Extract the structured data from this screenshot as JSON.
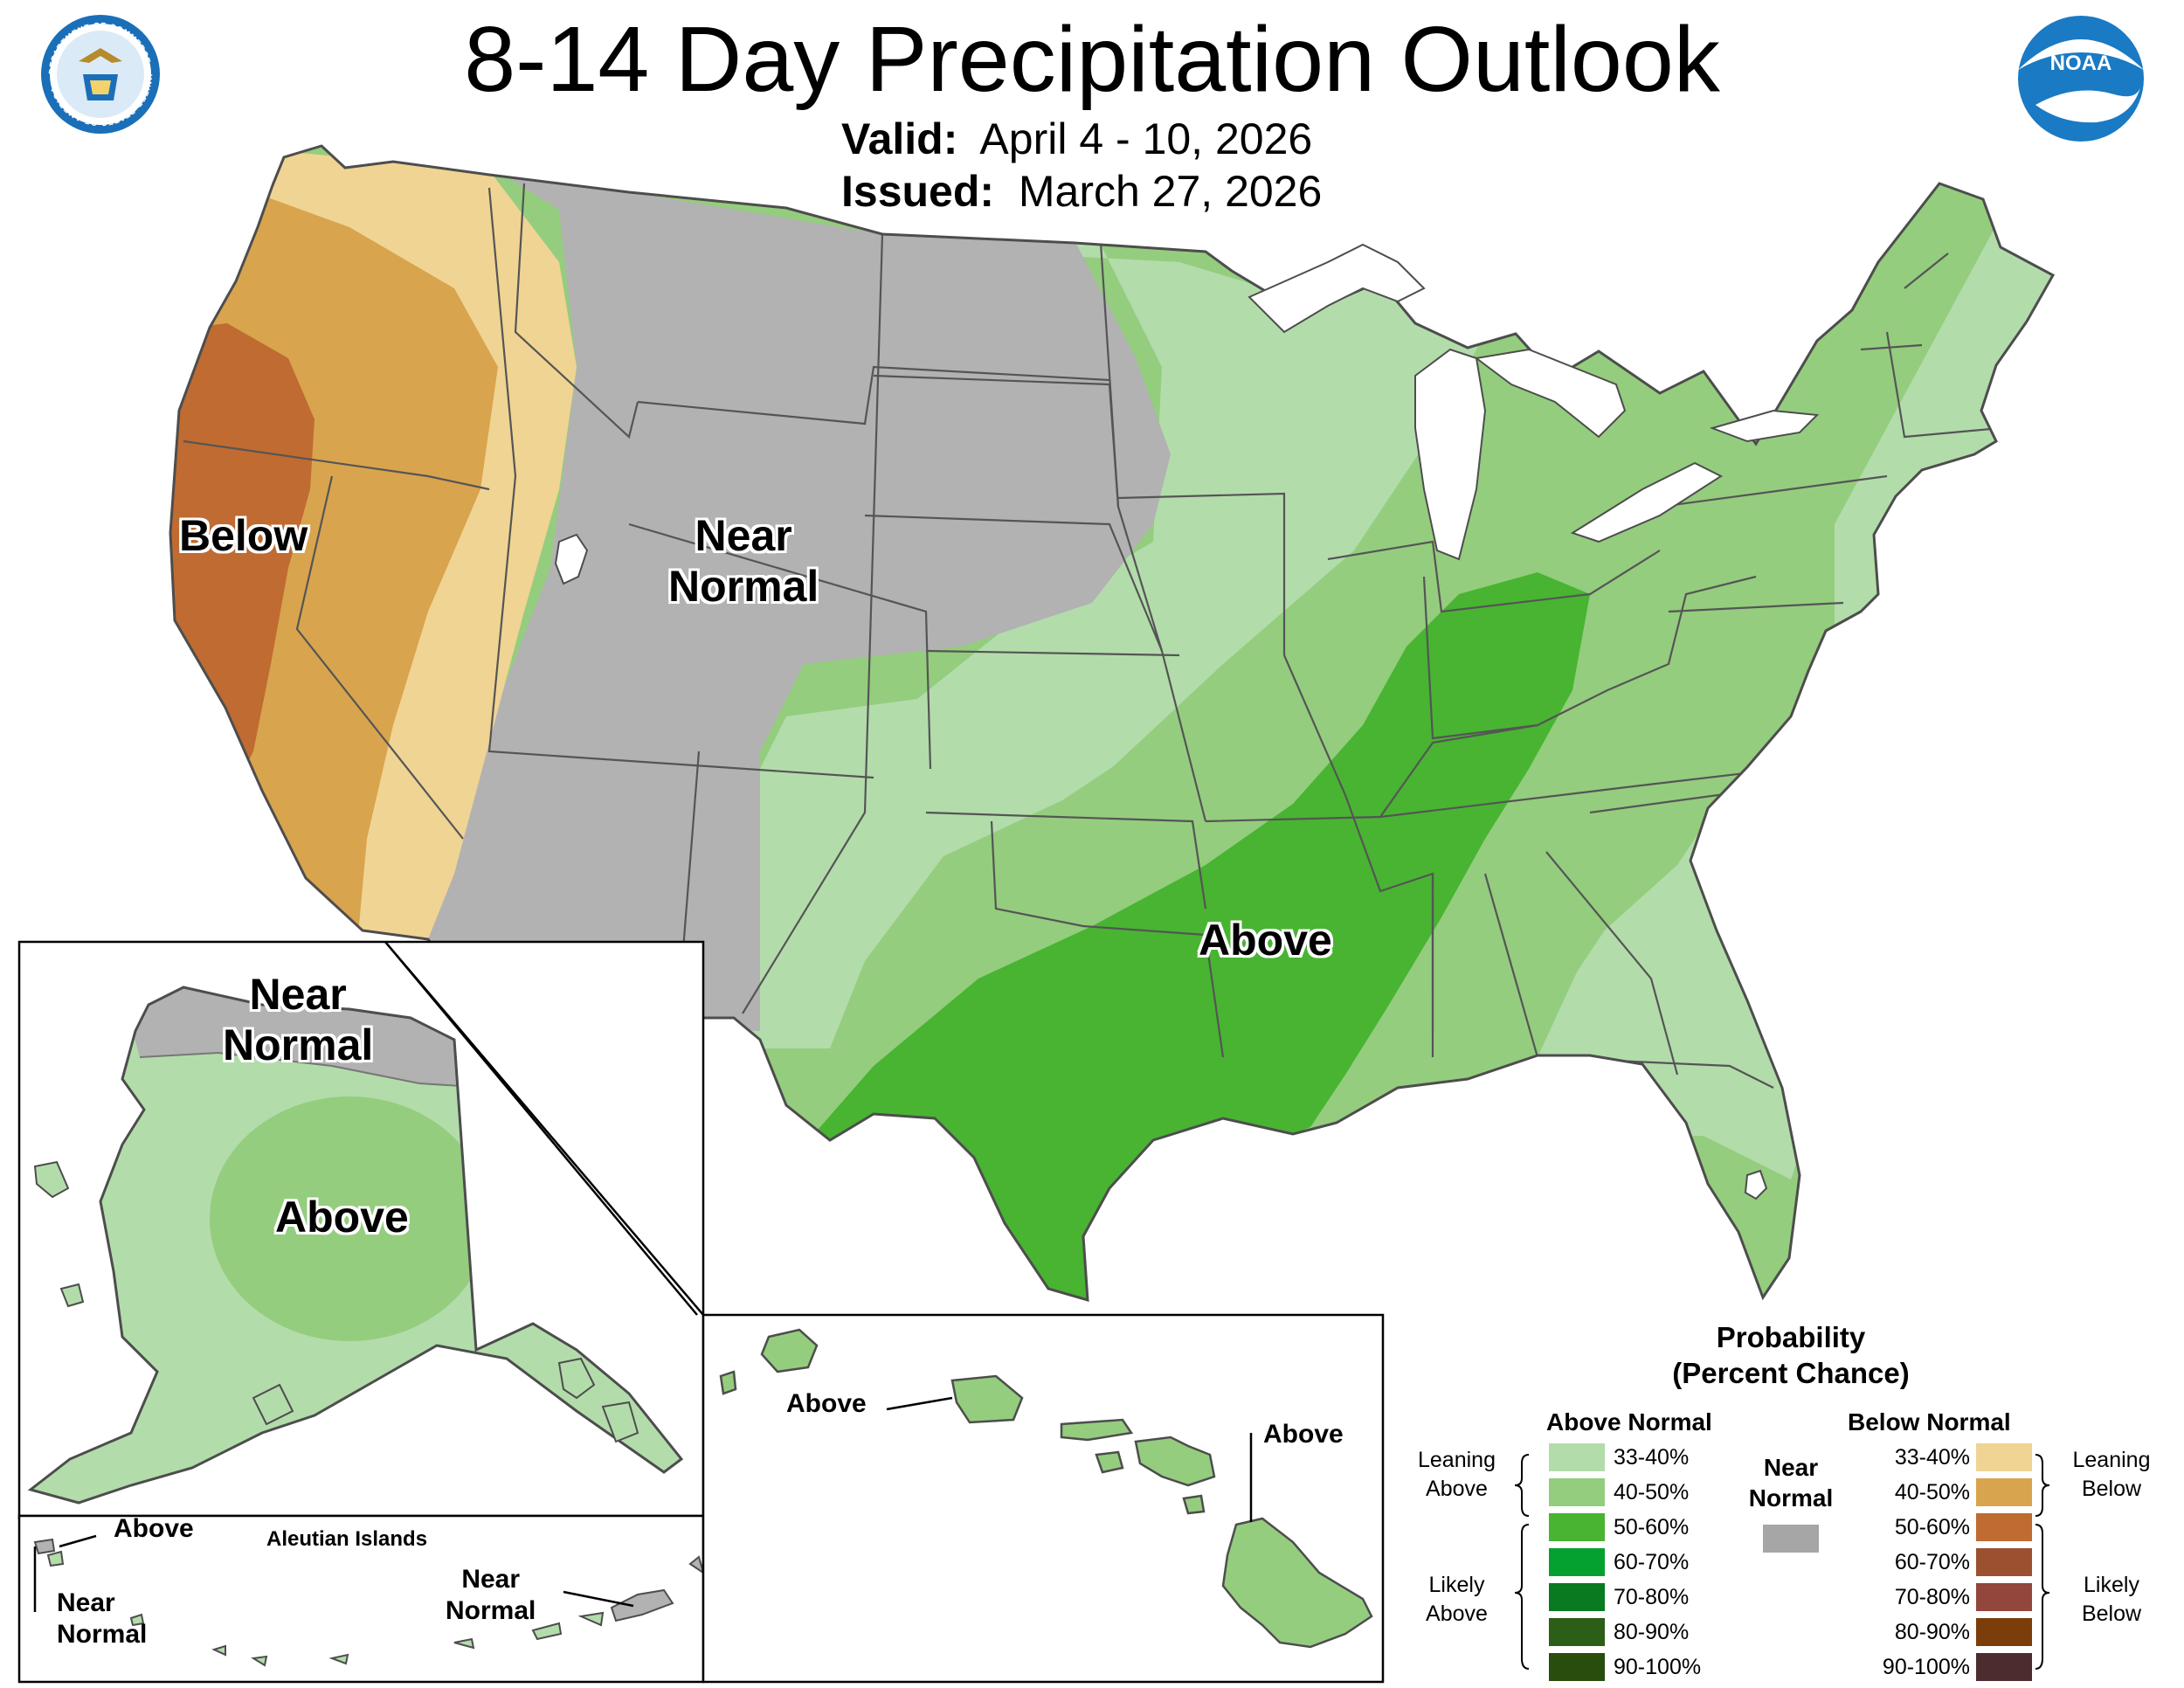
{
  "header": {
    "title": "8-14 Day Precipitation Outlook",
    "valid_label": "Valid:",
    "valid_value": "April 4 - 10, 2026",
    "issued_label": "Issued:",
    "issued_value": "March 27, 2026"
  },
  "logos": {
    "commerce_seal_icon": "department-of-commerce-seal-icon",
    "noaa_logo_icon": "noaa-logo-icon",
    "noaa_text": "NOAA",
    "seal_ring_text": "DEPARTMENT OF COMMERCE · UNITED STATES OF AMERICA"
  },
  "map_labels": {
    "conus_below": "Below",
    "conus_near_normal": "Near\nNormal",
    "conus_above": "Above",
    "alaska_near_normal": "Near\nNormal",
    "alaska_above": "Above",
    "aleutian_title": "Aleutian Islands",
    "aleutian_above": "Above",
    "aleutian_near_normal_west": "Near\nNormal",
    "aleutian_near_normal_east": "Near\nNormal",
    "hawaii_above_west": "Above",
    "hawaii_above_east": "Above"
  },
  "legend": {
    "heading": "Probability\n(Percent Chance)",
    "above_header": "Above Normal",
    "below_header": "Below Normal",
    "near_normal_label": "Near\nNormal",
    "leaning_above": "Leaning\nAbove",
    "likely_above": "Likely\nAbove",
    "leaning_below": "Leaning\nBelow",
    "likely_below": "Likely\nBelow",
    "above_rows": [
      {
        "range": "33-40%",
        "color": "#b3dcab"
      },
      {
        "range": "40-50%",
        "color": "#94cd7e"
      },
      {
        "range": "50-60%",
        "color": "#48b432"
      },
      {
        "range": "60-70%",
        "color": "#05a130"
      },
      {
        "range": "70-80%",
        "color": "#087a1f"
      },
      {
        "range": "80-90%",
        "color": "#2b5e16"
      },
      {
        "range": "90-100%",
        "color": "#284d0c"
      }
    ],
    "below_rows": [
      {
        "range": "33-40%",
        "color": "#f0d493"
      },
      {
        "range": "40-50%",
        "color": "#d9a44e"
      },
      {
        "range": "50-60%",
        "color": "#bf6b31"
      },
      {
        "range": "60-70%",
        "color": "#9b5130"
      },
      {
        "range": "70-80%",
        "color": "#93463b"
      },
      {
        "range": "80-90%",
        "color": "#7b3d0a"
      },
      {
        "range": "90-100%",
        "color": "#4c2c2e"
      }
    ],
    "near_normal_color": "#a6a6a6"
  },
  "colors": {
    "near_normal": "#b2b2b2",
    "above_lean": "#b3dcab",
    "above_40_50": "#94cd7e",
    "above_50_60": "#48b432",
    "below_lean": "#f0d493",
    "below_40_50": "#d9a44e",
    "below_50_60": "#bf6b31",
    "noaa_blue": "#1a7ac4",
    "seal_blue": "#1a6fb8"
  }
}
